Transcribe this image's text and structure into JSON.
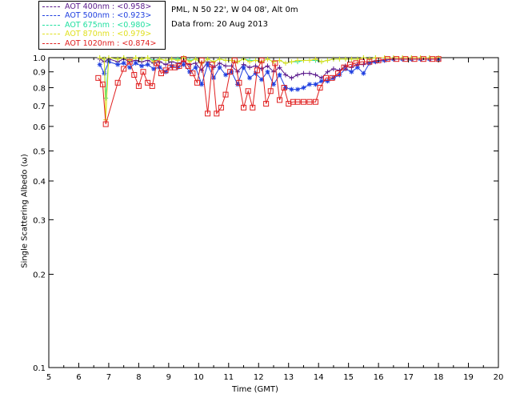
{
  "header": {
    "site_line": "PML, N 50 22', W 04 08', Alt 0m",
    "date_line": "Data from: 20 Aug 2013"
  },
  "legend": [
    {
      "label": "AOT  400nm : <0.958>",
      "color": "#5a1a8c"
    },
    {
      "label": "AOT  500nm : <0.923>",
      "color": "#2040e0"
    },
    {
      "label": "AOT  675nm : <0.980>",
      "color": "#20e0a0"
    },
    {
      "label": "AOT  870nm : <0.979>",
      "color": "#e0e020"
    },
    {
      "label": "AOT 1020nm : <0.874>",
      "color": "#e02020"
    }
  ],
  "chart_data": {
    "type": "line",
    "xlabel": "Time (GMT)",
    "ylabel": "Single Scattering Albedo (ω)",
    "xlim": [
      5,
      20
    ],
    "ylim": [
      0.1,
      1.0
    ],
    "yscale": "log",
    "xticks": [
      5,
      6,
      7,
      8,
      9,
      10,
      11,
      12,
      13,
      14,
      15,
      16,
      17,
      18,
      19,
      20
    ],
    "yticks": [
      0.1,
      0.2,
      0.3,
      0.4,
      0.5,
      0.6,
      0.7,
      0.8,
      0.9,
      1.0
    ],
    "ytick_labels": [
      "0.1",
      "0.2",
      "0.3",
      "0.4",
      "0.5",
      "0.6",
      "0.7",
      "0.8",
      "0.9",
      "1.0"
    ],
    "grid": false,
    "legend_position": "top-left outside",
    "series": [
      {
        "name": "AOT  400nm : <0.958>",
        "color": "#5a1a8c",
        "marker": "plus",
        "x": [
          6.7,
          6.85,
          7.0,
          7.3,
          7.5,
          7.7,
          7.9,
          8.1,
          8.3,
          8.5,
          8.7,
          8.9,
          9.1,
          9.3,
          9.5,
          9.7,
          9.9,
          10.1,
          10.3,
          10.5,
          10.7,
          10.9,
          11.1,
          11.3,
          11.5,
          11.7,
          11.9,
          12.1,
          12.3,
          12.5,
          12.7,
          12.9,
          13.1,
          13.3,
          13.5,
          13.7,
          13.9,
          14.1,
          14.3,
          14.5,
          14.7,
          14.9,
          15.1,
          15.3,
          15.5,
          15.7,
          15.9,
          16.2,
          16.5,
          16.8,
          17.1,
          17.4,
          17.7,
          18.0
        ],
        "y": [
          0.99,
          0.97,
          0.99,
          0.97,
          0.99,
          0.97,
          0.98,
          0.97,
          0.98,
          0.96,
          0.97,
          0.95,
          0.97,
          0.96,
          0.97,
          0.95,
          0.96,
          0.91,
          0.97,
          0.93,
          0.96,
          0.94,
          0.94,
          0.9,
          0.95,
          0.93,
          0.94,
          0.92,
          0.94,
          0.9,
          0.93,
          0.88,
          0.86,
          0.88,
          0.89,
          0.89,
          0.88,
          0.86,
          0.9,
          0.92,
          0.91,
          0.94,
          0.93,
          0.95,
          0.95,
          0.97,
          0.97,
          0.98,
          0.99,
          0.99,
          0.99,
          0.99,
          0.99,
          0.99
        ]
      },
      {
        "name": "AOT  500nm : <0.923>",
        "color": "#2040e0",
        "marker": "star",
        "x": [
          6.7,
          6.85,
          7.0,
          7.3,
          7.5,
          7.7,
          7.9,
          8.1,
          8.3,
          8.5,
          8.7,
          8.9,
          9.1,
          9.3,
          9.5,
          9.7,
          9.9,
          10.1,
          10.3,
          10.5,
          10.7,
          10.9,
          11.1,
          11.3,
          11.5,
          11.7,
          11.9,
          12.1,
          12.3,
          12.5,
          12.7,
          12.9,
          13.1,
          13.3,
          13.5,
          13.7,
          13.9,
          14.1,
          14.3,
          14.5,
          14.7,
          14.9,
          15.1,
          15.3,
          15.5,
          15.7,
          15.9,
          16.2,
          16.5,
          16.8,
          17.1,
          17.4,
          17.7,
          18.0
        ],
        "y": [
          0.95,
          0.89,
          0.97,
          0.95,
          0.96,
          0.93,
          0.96,
          0.94,
          0.95,
          0.92,
          0.93,
          0.9,
          0.94,
          0.93,
          0.95,
          0.9,
          0.93,
          0.82,
          0.95,
          0.86,
          0.93,
          0.88,
          0.9,
          0.82,
          0.93,
          0.86,
          0.89,
          0.85,
          0.9,
          0.82,
          0.88,
          0.8,
          0.79,
          0.79,
          0.8,
          0.82,
          0.82,
          0.84,
          0.84,
          0.86,
          0.88,
          0.92,
          0.9,
          0.93,
          0.89,
          0.96,
          0.97,
          0.98,
          0.99,
          0.99,
          0.99,
          0.99,
          0.99,
          0.99
        ]
      },
      {
        "name": "AOT  675nm : <0.980>",
        "color": "#20e0a0",
        "marker": "plus",
        "x": [
          6.7,
          6.85,
          6.9,
          7.0,
          7.3,
          7.5,
          7.7,
          7.9,
          8.1,
          8.3,
          8.5,
          8.7,
          8.9,
          9.1,
          9.3,
          9.5,
          9.7,
          9.9,
          10.1,
          10.3,
          10.5,
          10.7,
          10.9,
          11.1,
          11.3,
          11.5,
          11.7,
          11.9,
          12.1,
          12.3,
          12.5,
          12.7,
          12.9,
          13.1,
          13.3,
          13.5,
          13.7,
          13.9,
          14.1,
          14.3,
          14.5,
          14.7,
          14.9,
          15.1,
          15.3,
          15.5,
          15.7,
          15.9,
          16.2,
          16.5,
          16.8,
          17.1,
          17.4,
          17.7,
          18.0
        ],
        "y": [
          1.0,
          0.99,
          0.74,
          1.0,
          0.99,
          1.0,
          0.98,
          1.0,
          0.99,
          1.0,
          0.98,
          0.99,
          0.98,
          0.99,
          0.99,
          1.0,
          0.98,
          0.99,
          0.96,
          0.99,
          0.97,
          0.99,
          0.98,
          0.98,
          0.97,
          0.99,
          0.98,
          0.98,
          0.97,
          0.99,
          0.97,
          0.98,
          0.96,
          0.97,
          0.97,
          0.98,
          0.98,
          0.98,
          0.97,
          0.98,
          0.99,
          0.99,
          0.99,
          0.99,
          0.99,
          1.0,
          0.99,
          1.0,
          1.0,
          1.0,
          1.0,
          1.0,
          1.0,
          1.0,
          1.0
        ]
      },
      {
        "name": "AOT  870nm : <0.979>",
        "color": "#e0e020",
        "marker": "plus",
        "x": [
          6.7,
          6.85,
          6.9,
          7.0,
          7.3,
          7.5,
          7.7,
          7.9,
          8.1,
          8.3,
          8.5,
          8.7,
          8.9,
          9.1,
          9.3,
          9.5,
          9.7,
          9.9,
          10.1,
          10.3,
          10.5,
          10.7,
          10.9,
          11.1,
          11.3,
          11.5,
          11.7,
          11.9,
          12.1,
          12.3,
          12.5,
          12.7,
          12.9,
          13.1,
          13.3,
          13.5,
          13.7,
          13.9,
          14.1,
          14.3,
          14.5,
          14.7,
          14.9,
          15.1,
          15.3,
          15.5,
          15.7,
          15.9,
          16.2,
          16.5,
          16.8,
          17.1,
          17.4,
          17.7,
          18.0
        ],
        "y": [
          1.0,
          0.99,
          0.63,
          1.0,
          0.99,
          1.0,
          0.98,
          1.0,
          0.99,
          1.0,
          0.97,
          0.99,
          0.98,
          0.99,
          0.98,
          1.0,
          0.97,
          0.99,
          0.96,
          0.99,
          0.97,
          0.99,
          0.98,
          0.98,
          0.97,
          0.99,
          0.97,
          0.98,
          0.97,
          0.99,
          0.97,
          0.98,
          0.96,
          0.97,
          0.98,
          0.98,
          0.98,
          0.99,
          0.97,
          0.98,
          0.99,
          0.99,
          0.99,
          0.99,
          0.99,
          1.0,
          0.99,
          1.0,
          1.0,
          1.0,
          1.0,
          1.0,
          1.0,
          1.0,
          1.0
        ]
      },
      {
        "name": "AOT 1020nm : <0.874>",
        "color": "#e02020",
        "marker": "square",
        "x": [
          6.65,
          6.8,
          6.9,
          7.3,
          7.5,
          7.7,
          7.85,
          8.0,
          8.15,
          8.3,
          8.45,
          8.6,
          8.75,
          8.9,
          9.05,
          9.2,
          9.35,
          9.5,
          9.65,
          9.8,
          9.95,
          10.1,
          10.3,
          10.45,
          10.6,
          10.75,
          10.9,
          11.05,
          11.2,
          11.35,
          11.5,
          11.65,
          11.8,
          11.95,
          12.1,
          12.25,
          12.4,
          12.55,
          12.7,
          12.85,
          13.0,
          13.15,
          13.3,
          13.5,
          13.7,
          13.9,
          14.05,
          14.25,
          14.45,
          14.65,
          14.85,
          15.05,
          15.25,
          15.45,
          15.7,
          16.0,
          16.3,
          16.6,
          16.9,
          17.2,
          17.5,
          17.8,
          18.0
        ],
        "y": [
          0.86,
          0.82,
          0.61,
          0.83,
          0.92,
          0.97,
          0.88,
          0.81,
          0.9,
          0.83,
          0.81,
          0.96,
          0.89,
          0.91,
          0.93,
          0.93,
          0.94,
          0.99,
          0.94,
          0.89,
          0.83,
          0.98,
          0.66,
          0.95,
          0.66,
          0.69,
          0.76,
          0.9,
          0.98,
          0.83,
          0.69,
          0.78,
          0.69,
          0.91,
          0.98,
          0.71,
          0.78,
          0.96,
          0.73,
          0.8,
          0.71,
          0.72,
          0.72,
          0.72,
          0.72,
          0.72,
          0.8,
          0.86,
          0.86,
          0.89,
          0.93,
          0.95,
          0.96,
          0.97,
          0.97,
          0.98,
          0.99,
          0.99,
          0.99,
          0.99,
          0.99,
          0.99,
          0.99
        ]
      }
    ]
  }
}
